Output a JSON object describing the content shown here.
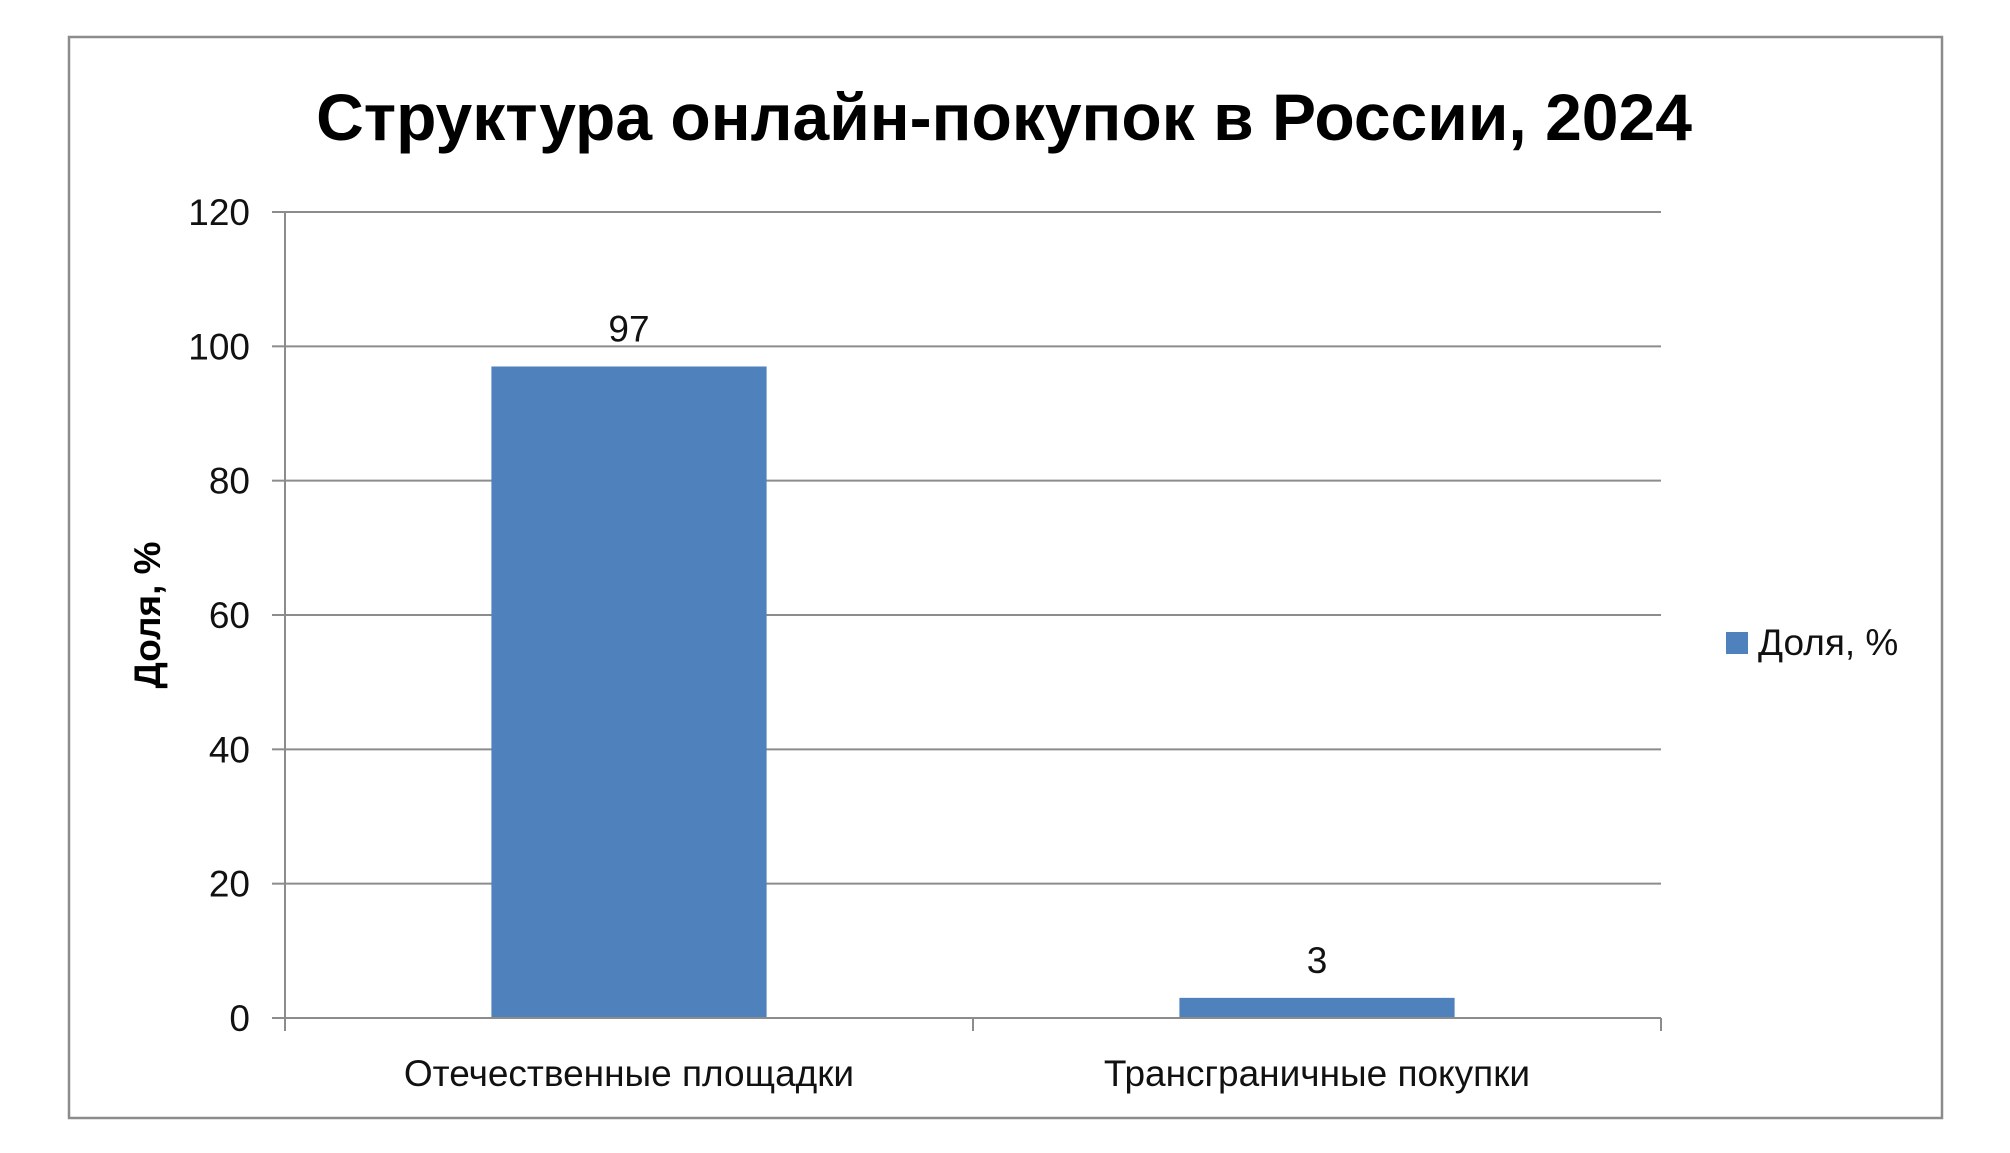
{
  "chart_data": {
    "type": "bar",
    "title": "Структура онлайн-покупок в России, 2024",
    "xlabel": "",
    "ylabel": "Доля, %",
    "categories": [
      "Отечественные площадки",
      "Трансграничные покупки"
    ],
    "series": [
      {
        "name": "Доля, %",
        "values": [
          97,
          3
        ],
        "color": "#4F81BD"
      }
    ],
    "data_labels": [
      "97",
      "3"
    ],
    "ylim": [
      0,
      120
    ],
    "yticks": [
      0,
      20,
      40,
      60,
      80,
      100,
      120
    ],
    "grid": true,
    "legend_position": "right"
  }
}
